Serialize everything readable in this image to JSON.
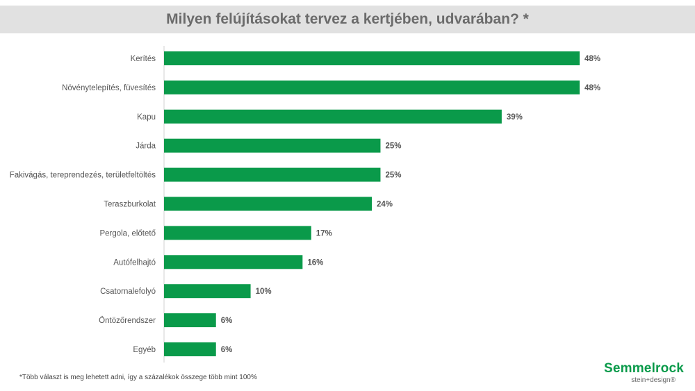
{
  "chart_data": {
    "type": "bar",
    "orientation": "horizontal",
    "title": "Milyen felújításokat tervez a kertjében, udvarában? *",
    "categories": [
      "Kerítés",
      "Növénytelepítés, füvesítés",
      "Kapu",
      "Járda",
      "Fakivágás, tereprendezés, területfeltöltés",
      "Teraszburkolat",
      "Pergola, előtető",
      "Autófelhajtó",
      "Csatornalefolyó",
      "Öntözőrendszer",
      "Egyéb"
    ],
    "values": [
      48,
      48,
      39,
      25,
      25,
      24,
      17,
      16,
      10,
      6,
      6
    ],
    "value_labels": [
      "48%",
      "48%",
      "39%",
      "25%",
      "25%",
      "24%",
      "17%",
      "16%",
      "10%",
      "6%",
      "6%"
    ],
    "unit": "%",
    "xlim": [
      0,
      48
    ],
    "xlabel": "",
    "ylabel": "",
    "grid": false,
    "bar_color": "#0a9a4a"
  },
  "footnote": "*Több választ is meg lehetett adni, így a százalékok összege több mint 100%",
  "logo": {
    "name": "Semmelrock",
    "tagline": "stein+design®",
    "color": "#0a9a4a"
  }
}
